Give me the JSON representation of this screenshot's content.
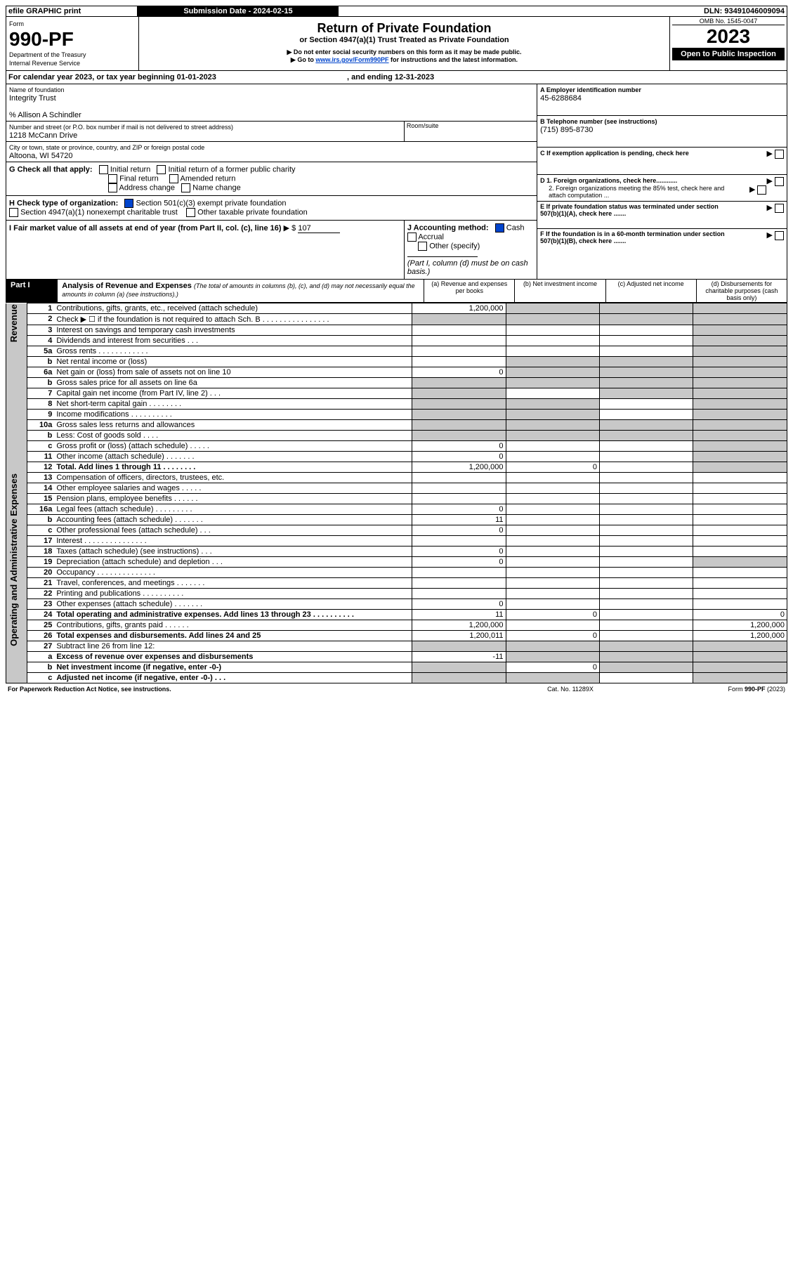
{
  "topbar": {
    "efile": "efile GRAPHIC print",
    "subdate_lbl": "Submission Date - 2024-02-15",
    "dln": "DLN: 93491046009094"
  },
  "hdr": {
    "form_no": "990-PF",
    "form_word": "Form",
    "dept": "Department of the Treasury",
    "irs": "Internal Revenue Service",
    "title": "Return of Private Foundation",
    "subtitle": "or Section 4947(a)(1) Trust Treated as Private Foundation",
    "note1": "▶ Do not enter social security numbers on this form as it may be made public.",
    "note2": "▶ Go to ",
    "link": "www.irs.gov/Form990PF",
    "note3": " for instructions and the latest information.",
    "omb": "OMB No. 1545-0047",
    "year": "2023",
    "open": "Open to Public Inspection"
  },
  "cal": {
    "line": "For calendar year 2023, or tax year beginning 01-01-2023",
    "end": ", and ending 12-31-2023"
  },
  "entity": {
    "name_lbl": "Name of foundation",
    "name": "Integrity Trust",
    "care": "% Allison A Schindler",
    "addr_lbl": "Number and street (or P.O. box number if mail is not delivered to street address)",
    "addr": "1218 McCann Drive",
    "room_lbl": "Room/suite",
    "city_lbl": "City or town, state or province, country, and ZIP or foreign postal code",
    "city": "Altoona, WI  54720",
    "a_lbl": "A Employer identification number",
    "a": "45-6288684",
    "b_lbl": "B Telephone number (see instructions)",
    "b": "(715) 895-8730",
    "c_lbl": "C If exemption application is pending, check here",
    "d1": "D 1. Foreign organizations, check here............",
    "d2": "2. Foreign organizations meeting the 85% test, check here and attach computation ...",
    "e": "E  If private foundation status was terminated under section 507(b)(1)(A), check here .......",
    "f": "F  If the foundation is in a 60-month termination under section 507(b)(1)(B), check here .......",
    "g_lbl": "G Check all that apply:",
    "g_opts": [
      "Initial return",
      "Initial return of a former public charity",
      "Final return",
      "Amended return",
      "Address change",
      "Name change"
    ],
    "h_lbl": "H Check type of organization:",
    "h1": "Section 501(c)(3) exempt private foundation",
    "h2": "Section 4947(a)(1) nonexempt charitable trust",
    "h3": "Other taxable private foundation",
    "i_lbl": "I Fair market value of all assets at end of year (from Part II, col. (c), line 16)",
    "i_val": "107",
    "i_pre": "▶ $",
    "j_lbl": "J Accounting method:",
    "j1": "Cash",
    "j2": "Accrual",
    "j3": "Other (specify)",
    "j_note": "(Part I, column (d) must be on cash basis.)"
  },
  "part1": {
    "label": "Part I",
    "title": "Analysis of Revenue and Expenses",
    "note": "(The total of amounts in columns (b), (c), and (d) may not necessarily equal the amounts in column (a) (see instructions).)",
    "cols": {
      "a": "(a)   Revenue and expenses per books",
      "b": "(b)   Net investment income",
      "c": "(c)   Adjusted net income",
      "d": "(d)   Disbursements for charitable purposes (cash basis only)"
    },
    "side_rev": "Revenue",
    "side_exp": "Operating and Administrative Expenses",
    "rows": [
      {
        "n": "1",
        "t": "Contributions, gifts, grants, etc., received (attach schedule)",
        "a": "1,200,000"
      },
      {
        "n": "2",
        "t": "Check ▶ ☐ if the foundation is not required to attach Sch. B    .  .  .  .  .  .  .  .  .  .  .  .  .  .  .  ."
      },
      {
        "n": "3",
        "t": "Interest on savings and temporary cash investments"
      },
      {
        "n": "4",
        "t": "Dividends and interest from securities    .   .   ."
      },
      {
        "n": "5a",
        "t": "Gross rents    .   .   .   .   .   .   .   .   .   .   .   ."
      },
      {
        "n": "b",
        "t": "Net rental income or (loss)"
      },
      {
        "n": "6a",
        "t": "Net gain or (loss) from sale of assets not on line 10",
        "a": "0"
      },
      {
        "n": "b",
        "t": "Gross sales price for all assets on line 6a"
      },
      {
        "n": "7",
        "t": "Capital gain net income (from Part IV, line 2)   .   .   ."
      },
      {
        "n": "8",
        "t": "Net short-term capital gain   .   .   .   .   .   .   .   ."
      },
      {
        "n": "9",
        "t": "Income modifications  .   .   .   .   .   .   .   .   .   ."
      },
      {
        "n": "10a",
        "t": "Gross sales less returns and allowances"
      },
      {
        "n": "b",
        "t": "Less: Cost of goods sold    .   .   .   ."
      },
      {
        "n": "c",
        "t": "Gross profit or (loss) (attach schedule)     .   .   .   .   .",
        "a": "0"
      },
      {
        "n": "11",
        "t": "Other income (attach schedule)    .   .   .   .   .   .   .",
        "a": "0"
      },
      {
        "n": "12",
        "t": "Total. Add lines 1 through 11    .   .   .   .   .   .   .   .",
        "a": "1,200,000",
        "b": "0",
        "bold": true
      },
      {
        "n": "13",
        "t": "Compensation of officers, directors, trustees, etc."
      },
      {
        "n": "14",
        "t": "Other employee salaries and wages    .   .   .   .   ."
      },
      {
        "n": "15",
        "t": "Pension plans, employee benefits   .   .   .   .   .   ."
      },
      {
        "n": "16a",
        "t": "Legal fees (attach schedule)  .   .   .   .   .   .   .   .   .",
        "a": "0"
      },
      {
        "n": "b",
        "t": "Accounting fees (attach schedule)  .   .   .   .   .   .   .",
        "a": "11"
      },
      {
        "n": "c",
        "t": "Other professional fees (attach schedule)    .   .   .",
        "a": "0"
      },
      {
        "n": "17",
        "t": "Interest  .   .   .   .   .   .   .   .   .   .   .   .   .   .   ."
      },
      {
        "n": "18",
        "t": "Taxes (attach schedule) (see instructions)     .   .   .",
        "a": "0"
      },
      {
        "n": "19",
        "t": "Depreciation (attach schedule) and depletion    .   .   .",
        "a": "0"
      },
      {
        "n": "20",
        "t": "Occupancy  .   .   .   .   .   .   .   .   .   .   .   .   .   ."
      },
      {
        "n": "21",
        "t": "Travel, conferences, and meetings  .   .   .   .   .   .   ."
      },
      {
        "n": "22",
        "t": "Printing and publications  .   .   .   .   .   .   .   .   .   ."
      },
      {
        "n": "23",
        "t": "Other expenses (attach schedule)  .   .   .   .   .   .   .",
        "a": "0"
      },
      {
        "n": "24",
        "t": "Total operating and administrative expenses. Add lines 13 through 23   .   .   .   .   .   .   .   .   .   .",
        "a": "11",
        "b": "0",
        "d": "0",
        "bold": true
      },
      {
        "n": "25",
        "t": "Contributions, gifts, grants paid     .   .   .   .   .   .",
        "a": "1,200,000",
        "d": "1,200,000"
      },
      {
        "n": "26",
        "t": "Total expenses and disbursements. Add lines 24 and 25",
        "a": "1,200,011",
        "b": "0",
        "d": "1,200,000",
        "bold": true
      },
      {
        "n": "27",
        "t": "Subtract line 26 from line 12:"
      },
      {
        "n": "a",
        "t": "Excess of revenue over expenses and disbursements",
        "a": "-11",
        "bold": true
      },
      {
        "n": "b",
        "t": "Net investment income (if negative, enter -0-)",
        "b": "0",
        "bold": true
      },
      {
        "n": "c",
        "t": "Adjusted net income (if negative, enter -0-)   .   .   .",
        "bold": true
      }
    ]
  },
  "footer": {
    "left": "For Paperwork Reduction Act Notice, see instructions.",
    "mid": "Cat. No. 11289X",
    "right": "Form 990-PF (2023)"
  }
}
